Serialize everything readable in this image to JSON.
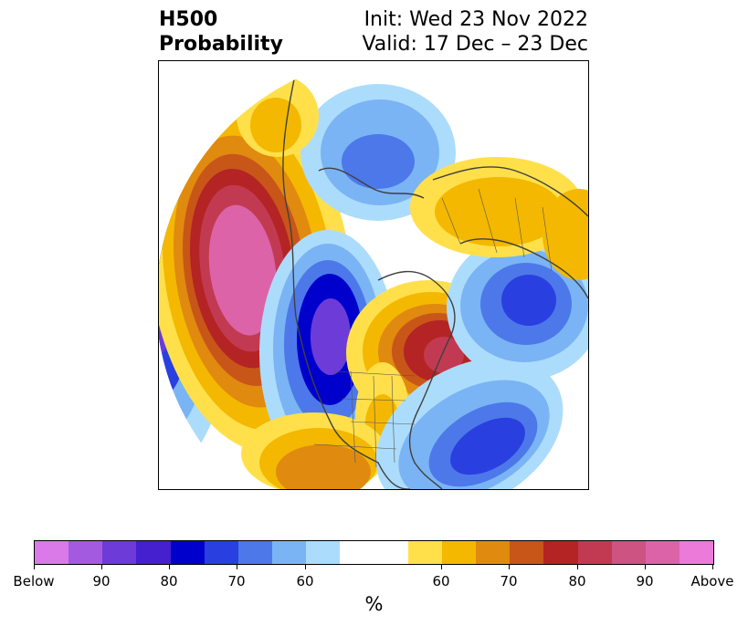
{
  "title": {
    "left_line1": "H500",
    "left_line2": "Probability",
    "right_line1": "Init: Wed 23 Nov 2022",
    "right_line2": "Valid: 17 Dec – 23 Dec"
  },
  "colorbar": {
    "below_colors": [
      "#d97ae8",
      "#a35ae0",
      "#6c3bd8",
      "#4420cf",
      "#0000cc",
      "#2a3fe0",
      "#4d78ea",
      "#7ab4f4",
      "#acdcfc"
    ],
    "neutral_color": "#ffffff",
    "above_colors": [
      "#ffe04a",
      "#f4b800",
      "#e08a10",
      "#c85618",
      "#b42424",
      "#c23a52",
      "#cc5382",
      "#dc63a8",
      "#ec7ad8"
    ],
    "tick_labels": [
      "Below",
      "90",
      "80",
      "70",
      "60",
      "60",
      "70",
      "80",
      "90",
      "Above"
    ],
    "unit": "%"
  },
  "map": {
    "projection": "polar-stereographic",
    "region": "Northern Hemisphere (North America / North Pacific / North Atlantic)"
  }
}
